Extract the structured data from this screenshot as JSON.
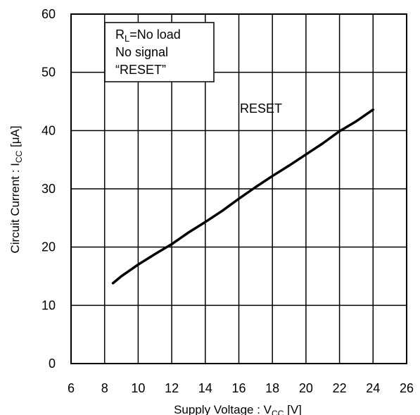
{
  "chart_data": {
    "type": "line",
    "xlabel": {
      "prefix": "Supply Voltage : V",
      "sub": "CC",
      "suffix": " [V]"
    },
    "ylabel": {
      "prefix": "Circuit Current : I",
      "sub": "CC",
      "suffix": " [μA]"
    },
    "xlim": [
      6,
      26
    ],
    "ylim": [
      0,
      60
    ],
    "xticks": [
      6,
      8,
      10,
      12,
      14,
      16,
      18,
      20,
      22,
      24,
      26
    ],
    "yticks": [
      0,
      10,
      20,
      30,
      40,
      50,
      60
    ],
    "grid": true,
    "legend_box": {
      "line1": {
        "prefix": "R",
        "sub": "L",
        "suffix": "=No load"
      },
      "line2": "No signal",
      "line3": "“RESET”",
      "placement": "top-left"
    },
    "series": [
      {
        "name": "RESET",
        "x": [
          8.5,
          9,
          10,
          11,
          12,
          13,
          14,
          15,
          16,
          17,
          18,
          19,
          20,
          21,
          22,
          23,
          24
        ],
        "y": [
          13.8,
          15.0,
          17.0,
          18.8,
          20.5,
          22.5,
          24.3,
          26.2,
          28.3,
          30.3,
          32.2,
          34.0,
          35.9,
          37.8,
          39.9,
          41.6,
          43.6
        ]
      }
    ]
  }
}
